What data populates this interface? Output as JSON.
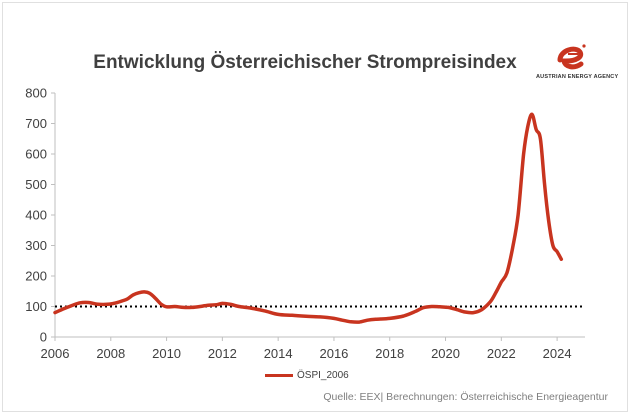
{
  "chart_data": {
    "type": "line",
    "title": "Entwicklung Österreichischer Strompreisindex",
    "xlabel": "",
    "ylabel": "",
    "xlim": [
      2006,
      2025
    ],
    "ylim": [
      0,
      800
    ],
    "xticks": [
      2006,
      2008,
      2010,
      2012,
      2014,
      2016,
      2018,
      2020,
      2022,
      2024
    ],
    "yticks": [
      0,
      100,
      200,
      300,
      400,
      500,
      600,
      700,
      800
    ],
    "reference_line": {
      "y": 100,
      "style": "dotted",
      "color": "#000000"
    },
    "legend": "bottom-center",
    "grid": false,
    "series": [
      {
        "name": "ÖSPI_2006",
        "color": "#c8341f",
        "x": [
          2006.0,
          2006.3,
          2006.6,
          2006.9,
          2007.2,
          2007.5,
          2007.8,
          2008.1,
          2008.4,
          2008.6,
          2008.8,
          2009.0,
          2009.2,
          2009.4,
          2009.6,
          2009.8,
          2010.0,
          2010.3,
          2010.6,
          2010.9,
          2011.2,
          2011.5,
          2011.8,
          2012.0,
          2012.3,
          2012.6,
          2013.0,
          2013.5,
          2014.0,
          2014.5,
          2015.0,
          2015.5,
          2016.0,
          2016.3,
          2016.6,
          2016.9,
          2017.2,
          2017.5,
          2018.0,
          2018.5,
          2018.9,
          2019.2,
          2019.5,
          2019.8,
          2020.1,
          2020.4,
          2020.7,
          2021.0,
          2021.3,
          2021.6,
          2021.8,
          2022.0,
          2022.2,
          2022.4,
          2022.6,
          2022.8,
          2022.95,
          2023.1,
          2023.25,
          2023.4,
          2023.55,
          2023.7,
          2023.85,
          2024.0,
          2024.15
        ],
        "values": [
          80,
          92,
          103,
          112,
          113,
          108,
          107,
          110,
          118,
          125,
          138,
          145,
          148,
          143,
          127,
          108,
          99,
          100,
          97,
          97,
          100,
          104,
          106,
          110,
          107,
          100,
          95,
          86,
          74,
          71,
          68,
          66,
          61,
          55,
          50,
          49,
          55,
          58,
          61,
          69,
          83,
          96,
          100,
          99,
          97,
          90,
          82,
          80,
          90,
          115,
          145,
          180,
          210,
          290,
          400,
          600,
          690,
          730,
          680,
          650,
          500,
          380,
          300,
          280,
          255
        ]
      }
    ]
  },
  "logo": {
    "text": "AUSTRIAN ENERGY AGENCY"
  },
  "source": "Quelle: EEX| Berechnungen: Österreichische Energieagentur"
}
